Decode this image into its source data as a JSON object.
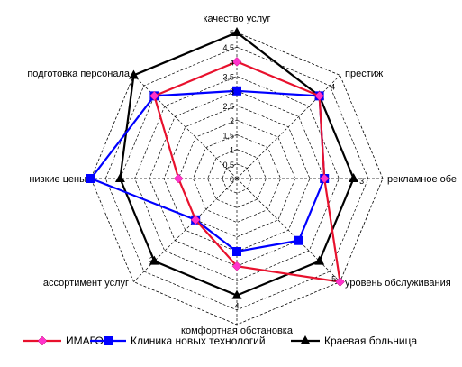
{
  "chart_data": {
    "type": "radar",
    "categories": [
      "качество услуг",
      "престиж",
      "рекламное обе",
      "уровень обслуживания",
      "комфортная обстановка",
      "ассортимент услуг",
      "низкие цены",
      "подготовка персонала"
    ],
    "rlim": [
      0,
      5
    ],
    "radial_ticks": [
      "0",
      "0,5",
      "1",
      "1,5",
      "2",
      "2,5",
      "3",
      "3,5",
      "4",
      "4,5",
      "5"
    ],
    "series": [
      {
        "name": "ИМАГО",
        "color": "#e8112d",
        "marker_color": "#ff33cc",
        "marker": "diamond",
        "values": [
          4,
          4,
          3,
          5,
          3,
          2,
          2,
          4
        ]
      },
      {
        "name": "Клиника новых технологий",
        "color": "#0000ff",
        "marker_color": "#0000ff",
        "marker": "square",
        "values": [
          3,
          4,
          3,
          3,
          2.5,
          2,
          5,
          4
        ]
      },
      {
        "name": "Краевая больница",
        "color": "#000000",
        "marker_color": "#000000",
        "marker": "triangle",
        "values": [
          5,
          4,
          4,
          4,
          4,
          4,
          4,
          5
        ]
      }
    ],
    "data_labels": [
      {
        "text": "4",
        "category": 1
      },
      {
        "text": "3",
        "category": 2
      },
      {
        "text": "5",
        "category": 3
      },
      {
        "text": "4",
        "category": 4
      },
      {
        "text": "3",
        "category": 5
      }
    ],
    "grid": true,
    "legend_position": "bottom"
  }
}
